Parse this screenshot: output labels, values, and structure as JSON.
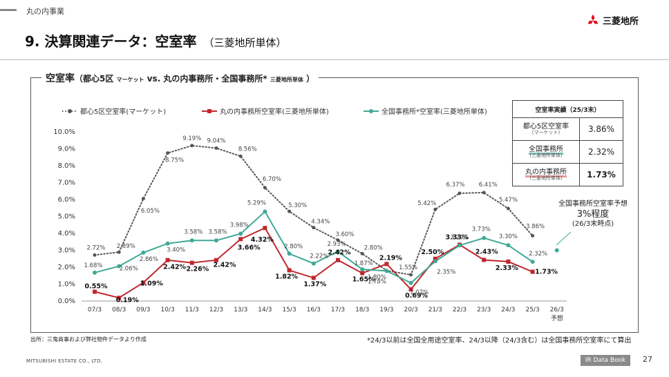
{
  "header": {
    "section": "丸の内事業",
    "title": "9. 決算関連データ：空室率",
    "subtitle": "（三菱地所単体）",
    "logo_name": "三菱地所"
  },
  "frame_title": {
    "main": "空室率",
    "rest": "（都心5区",
    "market": "マーケット",
    "vs": " vs. 丸の内事務所・全国事務所*",
    "small": "三菱地所単体",
    "close": "）"
  },
  "result_table": {
    "header": "空室率実績（25/3末）",
    "rows": [
      {
        "label": "都心5区空室率",
        "sub": "(マーケット)",
        "value": "3.86%"
      },
      {
        "label": "全国事務所",
        "sub": "(三菱地所単体)",
        "value": "2.32%"
      },
      {
        "label": "丸の内事務所",
        "sub": "(三菱地所単体)",
        "value": "1.73%"
      }
    ]
  },
  "forecast": {
    "line1": "全国事務所空室率予想",
    "line2": "3%程度",
    "line3": "(26/3末時点)"
  },
  "source": "出所：三鬼商事および弊社物件データより作成",
  "footnote": "*24/3以前は全国全用途空室率、24/3以降（24/3含む）は全国事務所空室率にて算出",
  "footer": {
    "company": "MITSUBISHI ESTATE CO., LTD.",
    "badge": "IR Data Book",
    "page": "27"
  },
  "chart_data": {
    "type": "line",
    "categories": [
      "07/3",
      "08/3",
      "09/3",
      "10/3",
      "11/3",
      "12/3",
      "13/3",
      "14/3",
      "15/3",
      "16/3",
      "17/3",
      "18/3",
      "19/3",
      "20/3",
      "21/3",
      "22/3",
      "23/3",
      "24/3",
      "25/3",
      "26/3"
    ],
    "category_sub": {
      "26/3": "予想"
    },
    "ylim": [
      0,
      10
    ],
    "yticks": [
      "0.0%",
      "1.0%",
      "2.0%",
      "3.0%",
      "4.0%",
      "5.0%",
      "6.0%",
      "7.0%",
      "8.0%",
      "9.0%",
      "10.0%"
    ],
    "series": [
      {
        "name": "都心5区空室率(マーケット)",
        "color": "#555555",
        "style": "dotted",
        "marker": "circle",
        "values": [
          2.72,
          2.89,
          6.05,
          8.75,
          9.19,
          9.04,
          8.56,
          6.7,
          5.3,
          4.34,
          3.6,
          2.8,
          1.8,
          1.55,
          5.42,
          6.37,
          6.41,
          5.47,
          3.86,
          null
        ],
        "labels": [
          "2.72%",
          "2.89%",
          "6.05%",
          "8.75%",
          "9.19%",
          "9.04%",
          "8.56%",
          "6.70%",
          "5.30%",
          "4.34%",
          "3.60%",
          "2.80%",
          "1.80%",
          "1.55%",
          "5.42%",
          "6.37%",
          "6.41%",
          "5.47%",
          "3.86%",
          ""
        ]
      },
      {
        "name": "丸の内事務所空室率(三菱地所単体)",
        "color": "#c0262d",
        "style": "solid",
        "marker": "square",
        "values": [
          0.55,
          0.19,
          1.09,
          2.42,
          2.26,
          2.42,
          3.66,
          4.32,
          1.82,
          1.37,
          2.42,
          1.65,
          2.19,
          0.69,
          2.5,
          3.33,
          2.43,
          2.33,
          1.73,
          null
        ],
        "labels": [
          "0.55%",
          "0.19%",
          "1.09%",
          "2.42%",
          "2.26%",
          "2.42%",
          "3.66%",
          "4.32%",
          "1.82%",
          "1.37%",
          "2.42%",
          "1.65%",
          "2.19%",
          "0.69%",
          "2.50%",
          "3.33%",
          "2.43%",
          "2.33%",
          "1.73%",
          ""
        ]
      },
      {
        "name": "全国事務所*空室率(三菱地所単体)",
        "color": "#3fa996",
        "style": "solid",
        "marker": "circle",
        "values": [
          1.68,
          2.06,
          2.86,
          3.4,
          3.58,
          3.58,
          3.98,
          5.29,
          2.8,
          2.22,
          2.93,
          1.87,
          1.78,
          1.07,
          2.35,
          3.29,
          3.73,
          3.3,
          2.32,
          3.0
        ],
        "labels": [
          "1.68%",
          "2.06%",
          "2.86%",
          "3.40%",
          "3.58%",
          "3.58%",
          "3.98%",
          "5.29%",
          "2.80%",
          "2.22%",
          "2.93%",
          "1.87%",
          "1.78%",
          "1.07%",
          "2.35%",
          "3.29%",
          "3.73%",
          "3.30%",
          "2.32%",
          ""
        ]
      }
    ]
  }
}
